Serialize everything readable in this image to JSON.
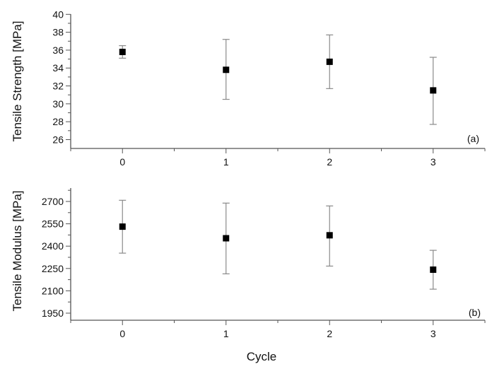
{
  "figure": {
    "x_axis_title": "Cycle",
    "colors": {
      "axis": "#555555",
      "errorbar": "#8a8a8a",
      "marker": "#000000"
    }
  },
  "chart_data": [
    {
      "type": "scatter",
      "panel_label": "(a)",
      "title": "",
      "xlabel": "Cycle",
      "ylabel": "Tensile Strength [MPa]",
      "x": [
        0,
        1,
        2,
        3
      ],
      "x_ticks": [
        "0",
        "1",
        "2",
        "3"
      ],
      "xlim": [
        -0.5,
        3.5
      ],
      "ylim": [
        25,
        40
      ],
      "y_ticks": [
        "26",
        "28",
        "30",
        "32",
        "34",
        "36",
        "38",
        "40"
      ],
      "grid": false,
      "series": [
        {
          "name": "Tensile Strength",
          "marker": "square",
          "values": [
            35.8,
            33.8,
            34.7,
            31.5
          ],
          "error_upper": [
            36.5,
            37.2,
            37.7,
            35.2
          ],
          "error_lower": [
            35.1,
            30.5,
            31.7,
            27.7
          ]
        }
      ]
    },
    {
      "type": "scatter",
      "panel_label": "(b)",
      "title": "",
      "xlabel": "Cycle",
      "ylabel": "Tensile Modulus [MPa]",
      "x": [
        0,
        1,
        2,
        3
      ],
      "x_ticks": [
        "0",
        "1",
        "2",
        "3"
      ],
      "xlim": [
        -0.5,
        3.5
      ],
      "ylim": [
        1900,
        2800
      ],
      "y_ticks": [
        "1950",
        "2100",
        "2250",
        "2400",
        "2550",
        "2700"
      ],
      "grid": false,
      "series": [
        {
          "name": "Tensile Modulus",
          "marker": "square",
          "values": [
            2531,
            2453,
            2473,
            2242
          ],
          "error_upper": [
            2708,
            2689,
            2670,
            2372
          ],
          "error_lower": [
            2353,
            2214,
            2266,
            2111
          ]
        }
      ]
    }
  ]
}
